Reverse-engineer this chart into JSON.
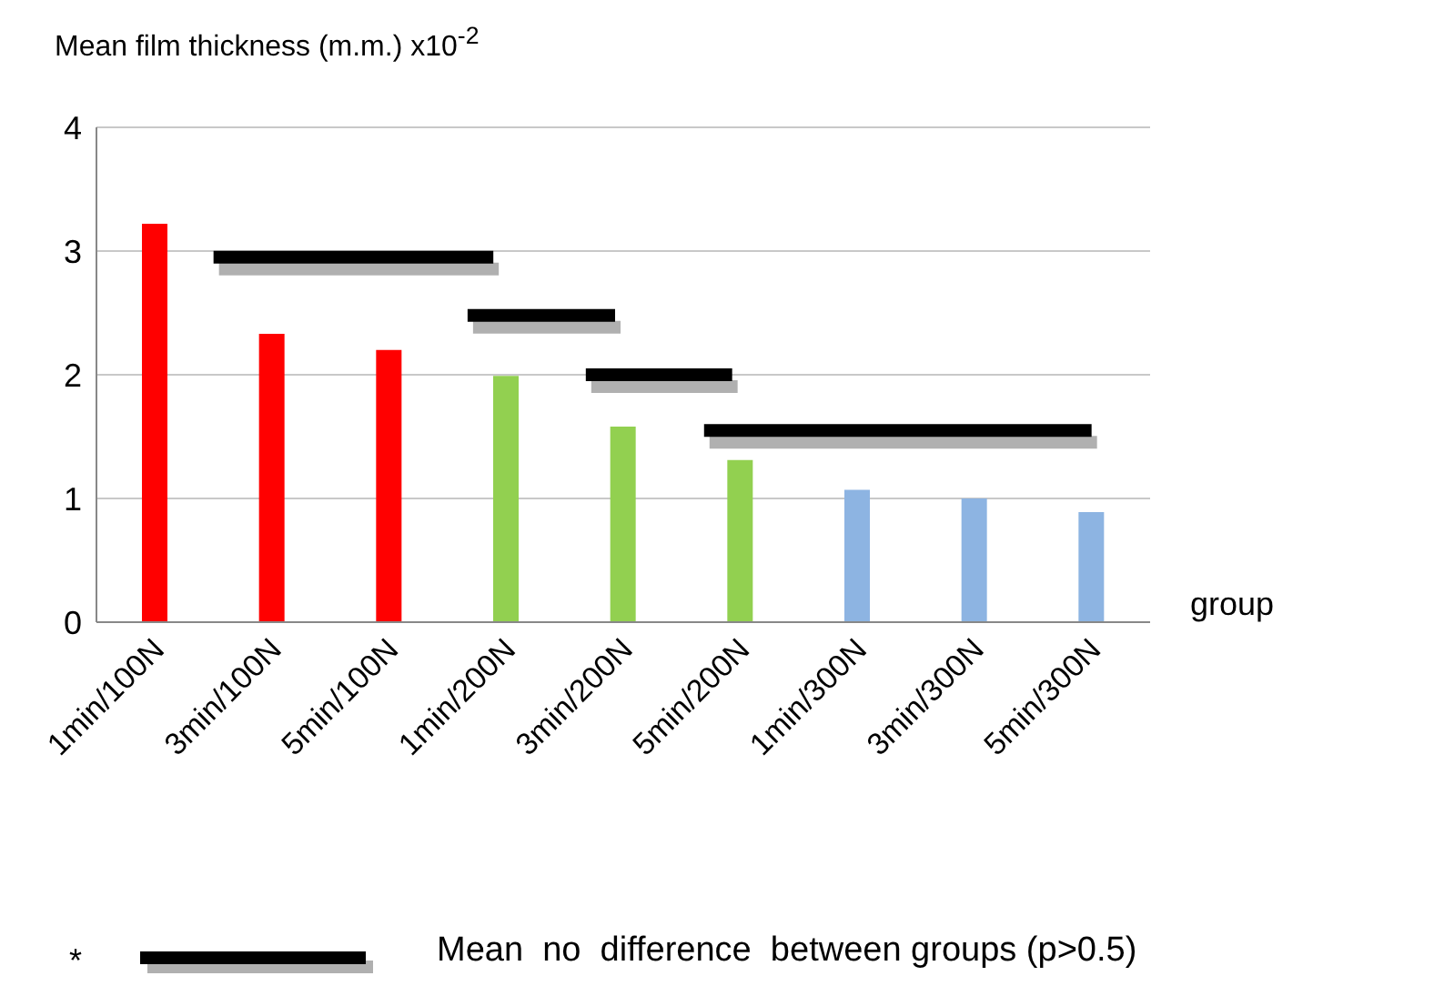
{
  "chart_data": {
    "type": "bar",
    "ylabel": "Mean film thickness (m.m.) x10$^{-2}$",
    "xlabel": "group",
    "categories": [
      "1min/100N",
      "3min/100N",
      "5min/100N",
      "1min/200N",
      "3min/200N",
      "5min/200N",
      "1min/300N",
      "3min/300N",
      "5min/300N"
    ],
    "values": [
      3.22,
      2.33,
      2.2,
      1.99,
      1.58,
      1.31,
      1.07,
      1.0,
      0.89
    ],
    "colors": [
      "#ff0000",
      "#ff0000",
      "#ff0000",
      "#92d050",
      "#92d050",
      "#92d050",
      "#8db4e2",
      "#8db4e2",
      "#8db4e2"
    ],
    "ylim": [
      0,
      4
    ],
    "yticks": [
      0,
      1,
      2,
      3,
      4
    ],
    "grid": "y",
    "legend": false,
    "annotations": [
      "*",
      "Mean  no  difference  between groups (p>0.5)"
    ]
  }
}
